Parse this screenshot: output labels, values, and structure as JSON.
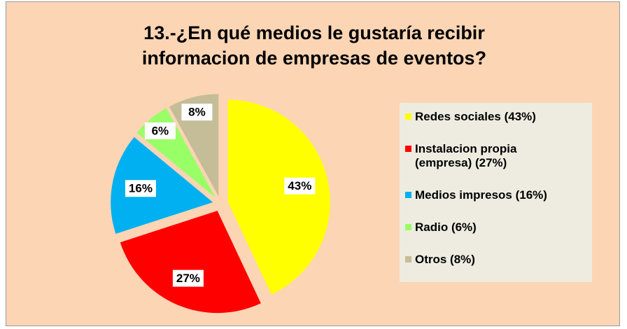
{
  "chart_data": {
    "type": "pie",
    "title": "13.-¿En qué medios le gustaría recibir informacion de empresas de eventos?",
    "categories": [
      "Redes sociales (43%)",
      "Instalacion propia (empresa) (27%)",
      "Medios impresos (16%)",
      "Radio (6%)",
      "Otros (8%)"
    ],
    "values": [
      43,
      27,
      16,
      6,
      8
    ],
    "value_labels": [
      "43%",
      "27%",
      "16%",
      "6%",
      "8%"
    ],
    "colors": [
      "#ffff00",
      "#ff0000",
      "#00b0f0",
      "#99ff66",
      "#c4bd97"
    ],
    "legend": "right"
  }
}
